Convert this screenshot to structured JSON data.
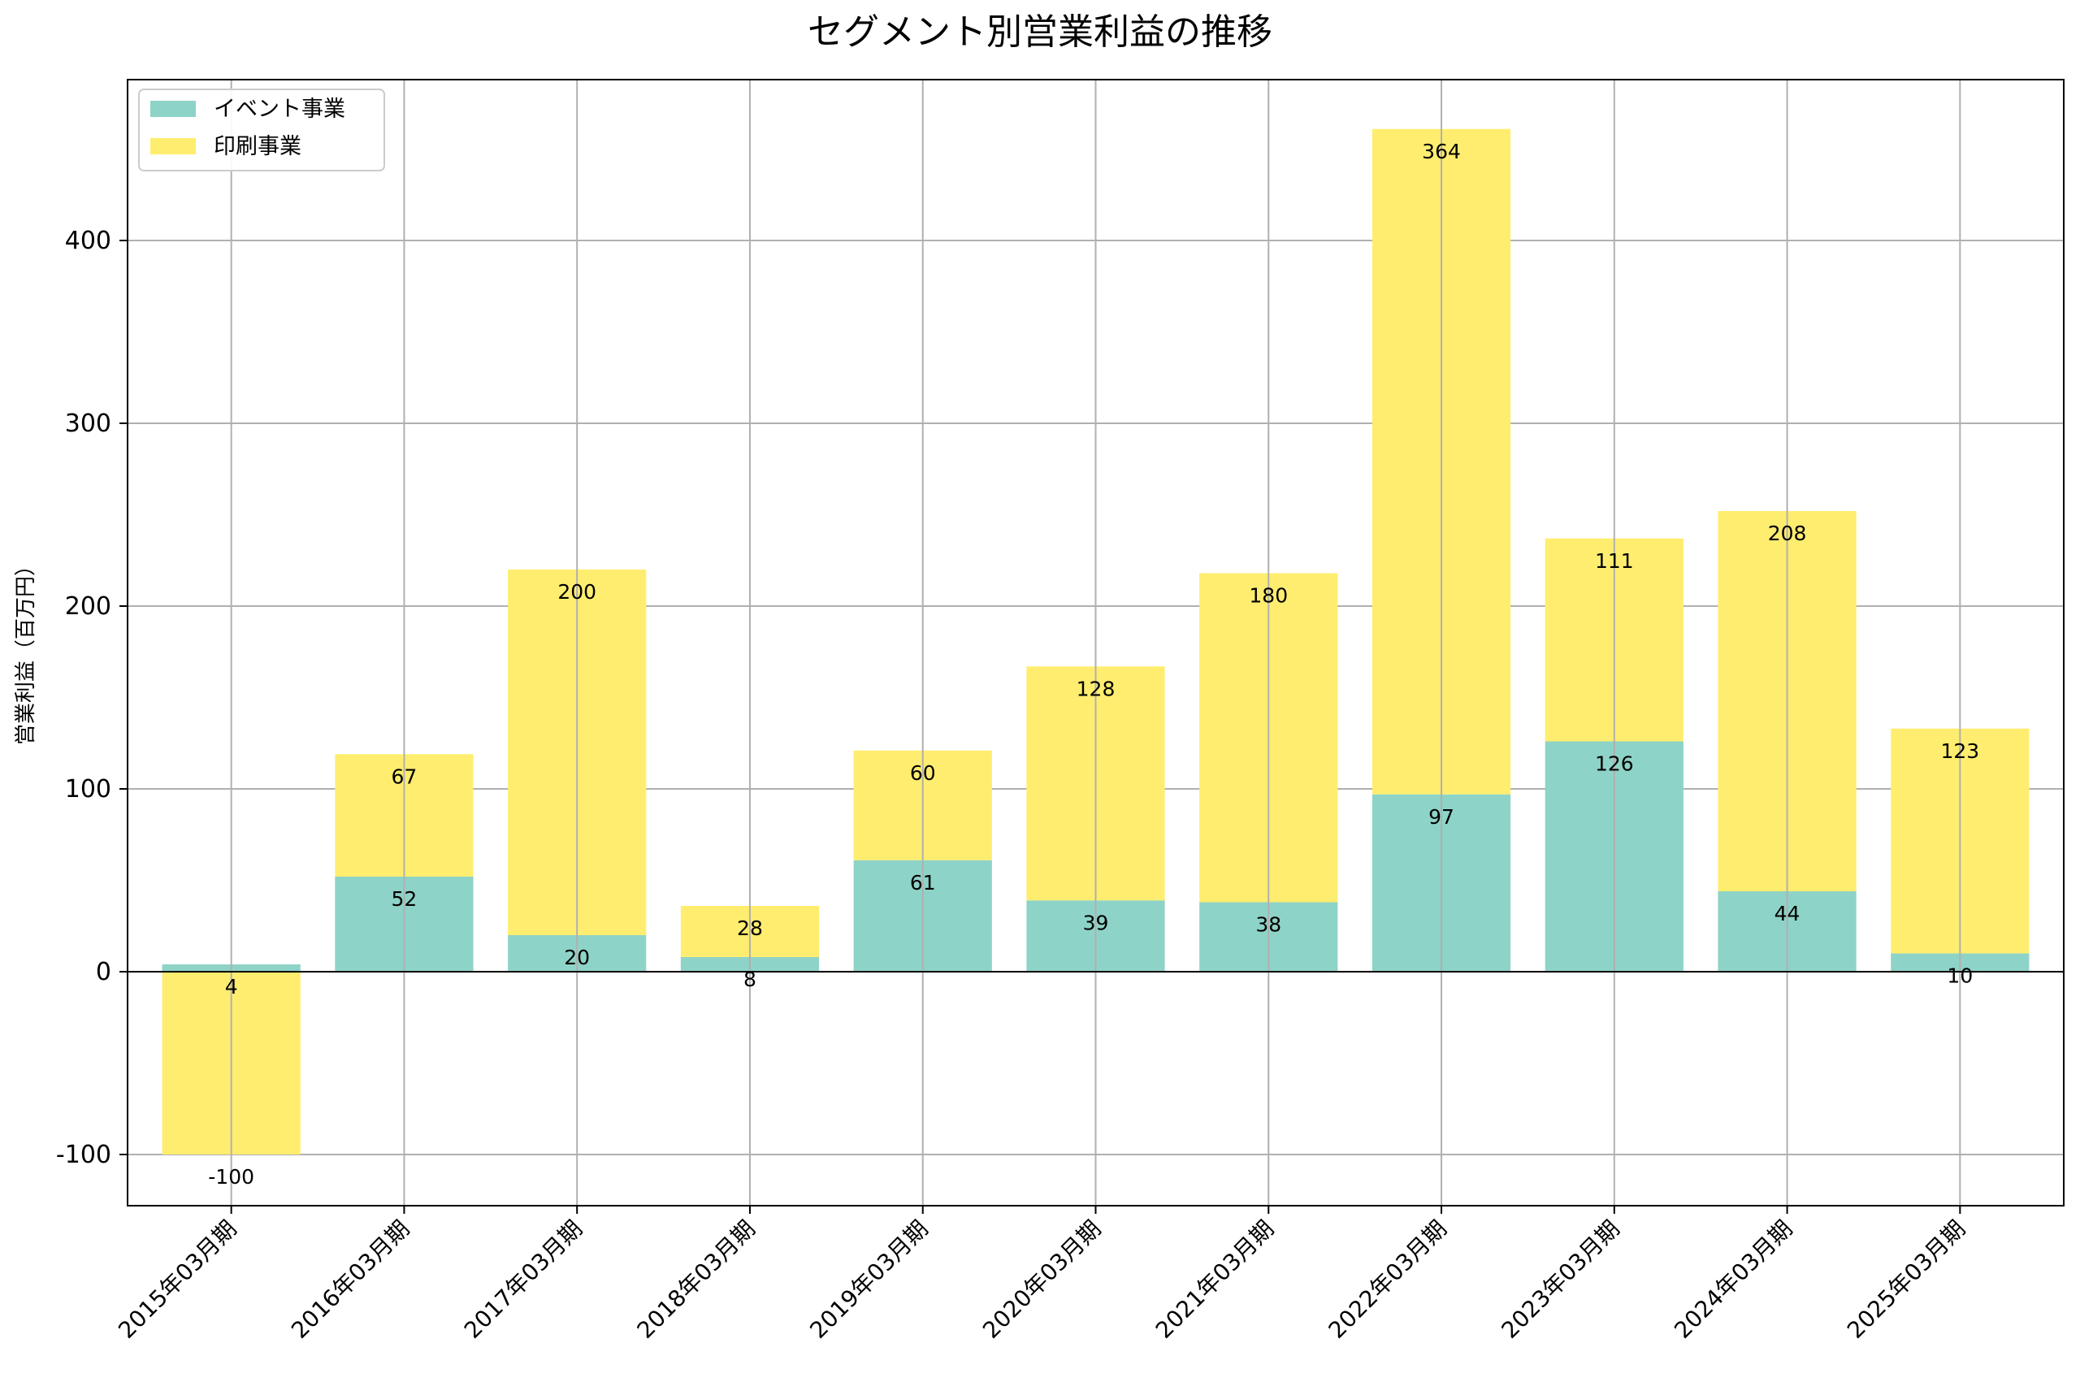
{
  "chart_data": {
    "type": "bar",
    "stacked": true,
    "title": "セグメント別営業利益の推移",
    "xlabel": "",
    "ylabel": "営業利益（百万円）",
    "categories": [
      "2015年03月期",
      "2016年03月期",
      "2017年03月期",
      "2018年03月期",
      "2019年03月期",
      "2020年03月期",
      "2021年03月期",
      "2022年03月期",
      "2023年03月期",
      "2024年03月期",
      "2025年03月期"
    ],
    "series": [
      {
        "name": "イベント事業",
        "color": "#8ed3c7",
        "values": [
          4,
          52,
          20,
          8,
          61,
          39,
          38,
          97,
          126,
          44,
          10
        ]
      },
      {
        "name": "印刷事業",
        "color": "#ffed6f",
        "values": [
          -100,
          67,
          200,
          28,
          60,
          128,
          180,
          364,
          111,
          208,
          123
        ]
      }
    ],
    "ylim": [
      -128,
      488
    ],
    "yticks": [
      -100,
      0,
      100,
      200,
      300,
      400
    ],
    "grid": true,
    "legend_position": "top-left"
  }
}
